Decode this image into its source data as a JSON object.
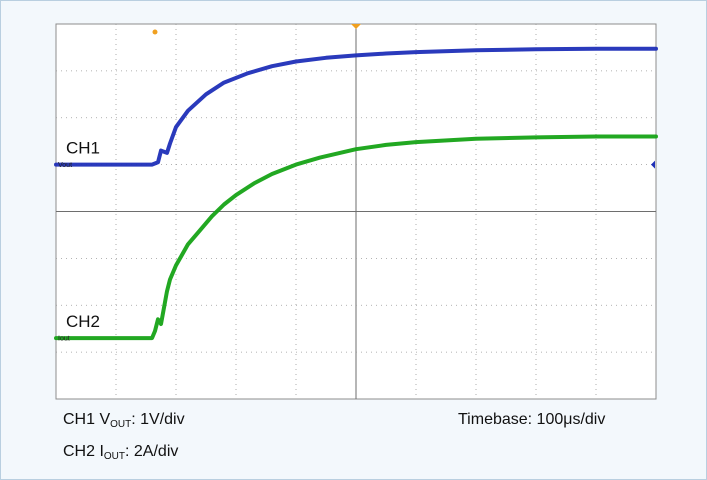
{
  "chart_data": {
    "type": "line",
    "title": "",
    "grid": true,
    "x_divisions": 10,
    "y_divisions": 8,
    "x_unit": "div",
    "y_unit": "div",
    "trigger_position_div": 5,
    "series": [
      {
        "name": "CH1",
        "ground_label": "Vout",
        "color": "#1f2fb8",
        "ground_div": 5.0,
        "x_div": [
          0,
          1.0,
          1.6,
          1.7,
          1.75,
          1.85,
          1.9,
          2.0,
          2.2,
          2.5,
          2.8,
          3.2,
          3.6,
          4.0,
          4.5,
          5.0,
          5.5,
          6.0,
          7.0,
          8.0,
          9.0,
          10.0
        ],
        "y_div": [
          5.0,
          5.0,
          5.0,
          5.05,
          5.3,
          5.25,
          5.45,
          5.8,
          6.15,
          6.5,
          6.75,
          6.95,
          7.1,
          7.2,
          7.28,
          7.33,
          7.37,
          7.4,
          7.44,
          7.46,
          7.47,
          7.47
        ]
      },
      {
        "name": "CH2",
        "ground_label": "Iout",
        "color": "#16a316",
        "ground_div": 1.3,
        "x_div": [
          0,
          1.0,
          1.6,
          1.65,
          1.7,
          1.75,
          1.8,
          1.85,
          1.9,
          2.0,
          2.2,
          2.4,
          2.6,
          2.8,
          3.0,
          3.3,
          3.6,
          4.0,
          4.4,
          5.0,
          5.5,
          6.0,
          7.0,
          8.0,
          9.0,
          10.0
        ],
        "y_div": [
          1.3,
          1.3,
          1.3,
          1.45,
          1.7,
          1.6,
          1.95,
          2.3,
          2.55,
          2.85,
          3.3,
          3.6,
          3.9,
          4.15,
          4.35,
          4.6,
          4.8,
          5.0,
          5.15,
          5.33,
          5.42,
          5.48,
          5.55,
          5.58,
          5.6,
          5.6
        ]
      }
    ]
  },
  "captions": {
    "ch1_prefix": "CH1 V",
    "ch1_sub": "OUT",
    "ch1_suffix": ": 1V/div",
    "ch2_prefix": "CH2 I",
    "ch2_sub": "OUT",
    "ch2_suffix": ": 2A/div",
    "timebase": "Timebase: 100μs/div"
  },
  "colors": {
    "ch1": "#1f2fb8",
    "ch2": "#16a316",
    "trigger_marker": "#f0a020",
    "grid": "#9a9a9a",
    "frame_background": "#f3f8fc"
  }
}
